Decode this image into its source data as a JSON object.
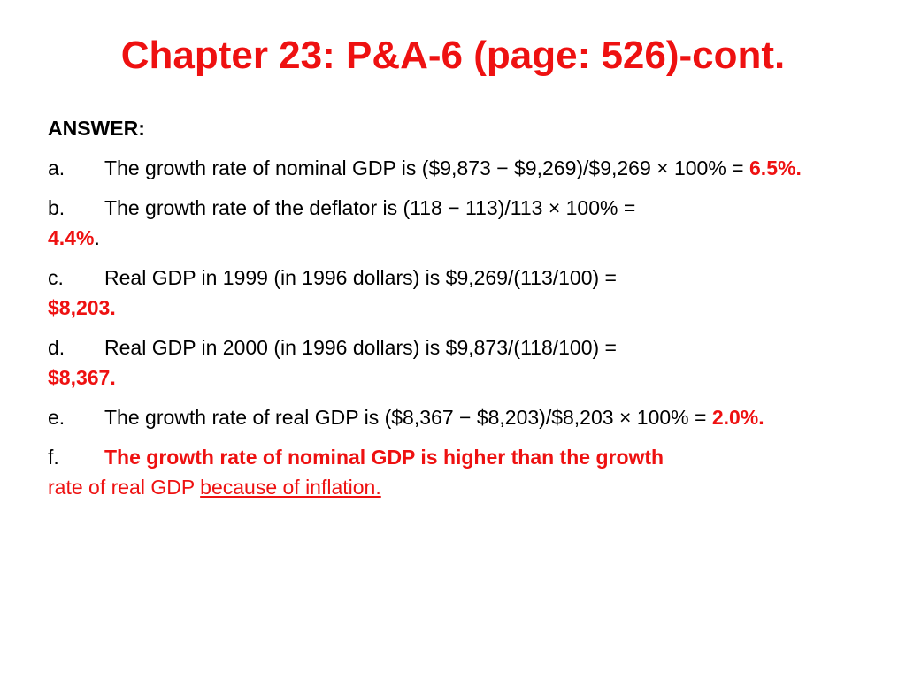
{
  "slide": {
    "title": "Chapter 23: P&A-6 (page: 526)-cont.",
    "answer_label": "ANSWER:",
    "accent_color": "#ee1111",
    "items": [
      {
        "letter": "a.",
        "text": "The growth rate of nominal GDP is ($9,873 − $9,269)/$9,269 × 100% = ",
        "result": "6.5%.",
        "after": ""
      },
      {
        "letter": "b.",
        "text": "The growth rate of the deflator is (118 − 113)/113 × 100% = ",
        "result": "4.4%",
        "after": "."
      },
      {
        "letter": "c.",
        "text": "Real GDP in 1999 (in 1996 dollars) is $9,269/(113/100) = ",
        "result": "$8,203.",
        "after": ""
      },
      {
        "letter": "d.",
        "text": "Real GDP in 2000 (in 1996 dollars) is $9,873/(118/100) = ",
        "result": "$8,367.",
        "after": ""
      },
      {
        "letter": "e.",
        "text": "The growth rate of real GDP is ($8,367 − $8,203)/$8,203 × 100% = ",
        "result": "2.0%.",
        "after": ""
      }
    ],
    "item_f": {
      "letter": "f.",
      "bold_text": "The growth rate of nominal GDP is higher than the growth",
      "plain_text": "rate of real GDP ",
      "underlined_text": "because of inflation."
    }
  }
}
